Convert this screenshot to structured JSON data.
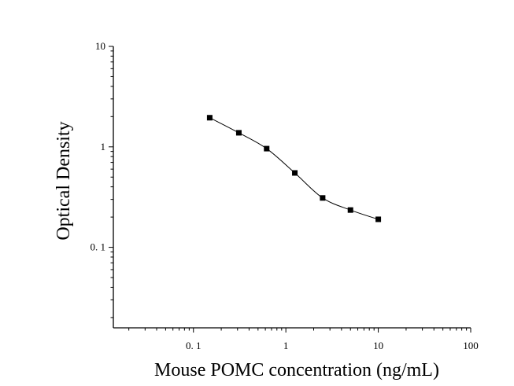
{
  "chart_data": {
    "type": "scatter",
    "title": "",
    "xlabel": "Mouse POMC concentration (ng/mL)",
    "ylabel": "Optical Density",
    "xscale": "log",
    "yscale": "log",
    "xlim": [
      0.0136,
      100
    ],
    "ylim": [
      0.0158,
      10
    ],
    "grid": false,
    "legend": "none",
    "x_ticks": [
      {
        "value": 0.1,
        "label": "0. 1"
      },
      {
        "value": 1,
        "label": "1"
      },
      {
        "value": 10,
        "label": "10"
      },
      {
        "value": 100,
        "label": "100"
      }
    ],
    "y_ticks": [
      {
        "value": 0.1,
        "label": "0. 1"
      },
      {
        "value": 1,
        "label": "1"
      },
      {
        "value": 10,
        "label": "10"
      }
    ],
    "series": [
      {
        "points": [
          {
            "x": 0.15,
            "y": 1.95
          },
          {
            "x": 0.31,
            "y": 1.38
          },
          {
            "x": 0.62,
            "y": 0.96
          },
          {
            "x": 1.25,
            "y": 0.55
          },
          {
            "x": 2.5,
            "y": 0.31
          },
          {
            "x": 5,
            "y": 0.235
          },
          {
            "x": 10,
            "y": 0.19
          }
        ],
        "fit_curve": true
      }
    ]
  }
}
